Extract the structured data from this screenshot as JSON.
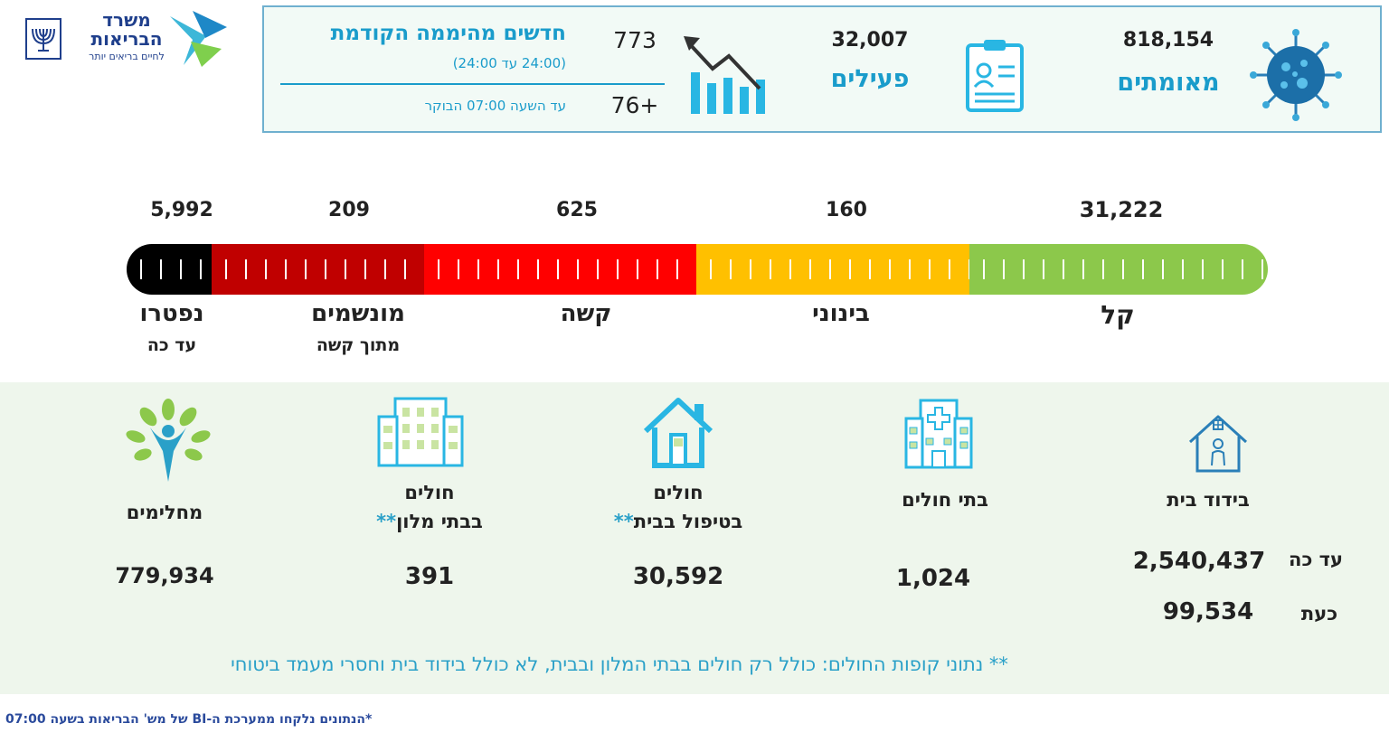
{
  "logo": {
    "ministry_name_line1": "משרד",
    "ministry_name_line2": "הבריאות",
    "slogan": "לחיים בריאים יותר"
  },
  "summary": {
    "confirmed": {
      "value": "818,154",
      "label": "מאומתים",
      "icon": "virus-icon"
    },
    "active": {
      "value": "32,007",
      "label": "פעילים",
      "icon": "clipboard-icon"
    },
    "new_cases": {
      "title": "חדשים מהיממה הקודמת",
      "subtitle": "(24:00 עד 24:00)",
      "value": "773",
      "since_label": "עד השעה  07:00  הבוקר",
      "since_value": "76+",
      "icon": "trend-chart-icon"
    }
  },
  "severity": {
    "segments": [
      {
        "label": "קל",
        "value": "31,222",
        "color": "#8cc84b",
        "share": 0.24
      },
      {
        "label": "בינוני",
        "value": "160",
        "color": "#ffc000",
        "share": 0.24
      },
      {
        "label": "קשה",
        "value": "625",
        "color": "#ff0000",
        "share": 0.24
      },
      {
        "label": "מונשמים",
        "sublabel": "מתוך קשה",
        "value": "209",
        "color": "#c00000",
        "share": 0.19
      },
      {
        "label": "נפטרו",
        "sublabel": "עד כה",
        "value": "5,992",
        "color": "#000000",
        "share": 0.07
      }
    ]
  },
  "categories": {
    "home_isolation": {
      "label": "בידוד בית",
      "so_far_label": "עד כה",
      "so_far_value": "2,540,437",
      "now_label": "כעת",
      "now_value": "99,534",
      "icon": "house-person-icon"
    },
    "hospitals": {
      "label": "בתי חולים",
      "value": "1,024",
      "icon": "hospital-icon"
    },
    "home_care": {
      "label_line1": "חולים",
      "label_line2": "בטיפול בבית",
      "stars": "**",
      "value": "30,592",
      "icon": "house-icon"
    },
    "hotels": {
      "label_line1": "חולים",
      "label_line2": "בבתי מלון",
      "stars": "**",
      "value": "391",
      "icon": "hotel-building-icon"
    },
    "recovered": {
      "label": "מחלימים",
      "value": "779,934",
      "icon": "tree-person-icon"
    }
  },
  "notes": {
    "kupot_note": "** נתוני קופות החולים: כולל רק חולים בבתי המלון ובבית, לא כולל בידוד בית וחסרי מעמד ביטוחי",
    "source_note": "*הנתונים נלקחו ממערכת ה-BI של מש' הבריאות בשעה 07:00"
  },
  "colors": {
    "teal": "#1a9ccb",
    "box_border": "#6fb0cf",
    "panel_bg": "#eef6ec"
  }
}
